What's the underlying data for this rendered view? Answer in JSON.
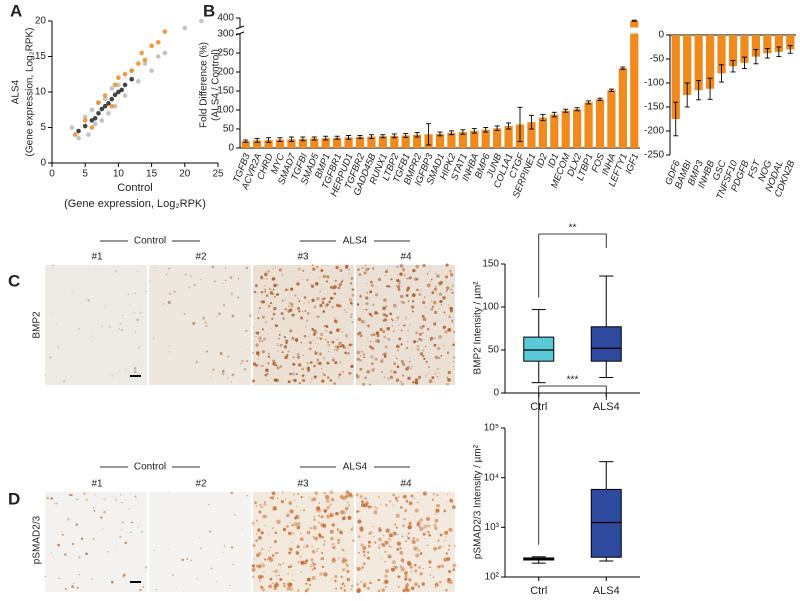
{
  "figure": {
    "panel_labels": [
      "A",
      "B",
      "C",
      "D"
    ],
    "panel_c": {
      "groups": [
        "Control",
        "ALS4"
      ],
      "samples": [
        "#1",
        "#2",
        "#3",
        "#4"
      ],
      "stain": "BMP2"
    },
    "panel_d": {
      "groups": [
        "Control",
        "ALS4"
      ],
      "samples": [
        "#1",
        "#2",
        "#3",
        "#4"
      ],
      "stain": "pSMAD2/3"
    }
  },
  "chart_data": [
    {
      "type": "scatter",
      "xlabel": [
        "Control",
        "(Gene expression, Log₂RPK)"
      ],
      "ylabel": [
        "ALS4",
        "(Gene expression, Log₂RPK)"
      ],
      "xlim": [
        0,
        25
      ],
      "ylim": [
        0,
        20
      ],
      "xticks": [
        0,
        5,
        10,
        15,
        20,
        25
      ],
      "yticks": [
        0,
        5,
        10,
        15,
        20
      ],
      "series": [
        {
          "color": "#b8b8b8",
          "x": [
            3,
            4,
            5,
            5.5,
            6,
            6.5,
            7,
            7.5,
            8,
            8.5,
            9,
            9.5,
            10,
            11,
            12,
            13,
            14,
            15,
            16,
            17,
            20,
            22.5
          ],
          "y": [
            5,
            3.5,
            6.5,
            4,
            7.5,
            5.5,
            8.5,
            6,
            9,
            7,
            10.5,
            8,
            11,
            9.5,
            13,
            11.5,
            14,
            13,
            15,
            15.5,
            19,
            20
          ]
        },
        {
          "color": "#222222",
          "x": [
            4,
            5,
            6,
            6.5,
            7,
            7.5,
            8,
            8.5,
            9,
            9.5,
            10,
            10.5,
            11,
            12
          ],
          "y": [
            4.5,
            5.2,
            6,
            6.3,
            7,
            7.6,
            8,
            8.4,
            9,
            9.6,
            10,
            10.3,
            11,
            11.8
          ]
        },
        {
          "color": "#f08a1c",
          "x": [
            3.5,
            5,
            6,
            7,
            8,
            9,
            9.5,
            10,
            11,
            12,
            13,
            13.5,
            14,
            15,
            16,
            17
          ],
          "y": [
            4,
            6,
            5,
            8.5,
            9.5,
            8,
            11,
            12,
            12.5,
            13,
            14,
            15.5,
            14.5,
            16.5,
            17,
            18.5
          ]
        }
      ]
    },
    {
      "type": "bar",
      "ylabel": [
        "Fold Difference (%)",
        "(ALS4 / Control)"
      ],
      "categories": [
        "TGFB3",
        "ACVR2A",
        "CHRD",
        "MYC",
        "SMAD7",
        "TGFBI",
        "SMAD5",
        "BMP1",
        "TGFBR1",
        "HERPUD1",
        "TGFBR2",
        "GADD45B",
        "RUNX1",
        "LTBP2",
        "TGFB1",
        "BMPR2",
        "IGFBP3",
        "SMAD1",
        "HIPK2",
        "STAT1",
        "INHBA",
        "BMP6",
        "JUNB",
        "COL1A1",
        "CTGF",
        "SERPINE1",
        "ID2",
        "ID1",
        "MECOM",
        "DLX2",
        "LTBP1",
        "FOS",
        "INHA",
        "LEFTY1",
        "IGF1"
      ],
      "values": [
        18,
        20,
        21,
        22,
        23,
        24,
        25,
        26,
        27,
        28,
        29,
        30,
        31,
        32,
        33,
        35,
        36,
        37,
        40,
        42,
        45,
        48,
        52,
        58,
        62,
        68,
        80,
        88,
        98,
        102,
        120,
        128,
        152,
        210,
        385
      ],
      "errors": [
        3,
        5,
        6,
        5,
        6,
        5,
        4,
        5,
        4,
        5,
        4,
        5,
        4,
        5,
        5,
        6,
        28,
        5,
        5,
        6,
        6,
        6,
        6,
        8,
        45,
        18,
        8,
        6,
        4,
        4,
        4,
        3,
        3,
        3,
        3
      ],
      "color": "#f08a1c",
      "ylim": [
        0,
        400
      ],
      "yticks": [
        0,
        50,
        100,
        150,
        200,
        250,
        300,
        400
      ],
      "axis_break": [
        300,
        350
      ]
    },
    {
      "type": "bar",
      "categories": [
        "GDF6",
        "BAMBI",
        "BMP3",
        "INHBB",
        "GSC",
        "TNFSF10",
        "PDGFB",
        "FST",
        "NOG",
        "NODAL",
        "CDKN2B"
      ],
      "values": [
        -175,
        -125,
        -115,
        -112,
        -80,
        -65,
        -58,
        -45,
        -38,
        -35,
        -30
      ],
      "errors": [
        35,
        25,
        20,
        22,
        18,
        12,
        12,
        15,
        10,
        10,
        8
      ],
      "color": "#f08a1c",
      "ylim": [
        -250,
        0
      ],
      "yticks": [
        -250,
        -200,
        -150,
        -100,
        -50,
        0
      ]
    },
    {
      "type": "box",
      "ylabel": "BMP2 Intensity / µm²",
      "categories": [
        "Ctrl",
        "ALS4"
      ],
      "boxes": [
        {
          "min": 12,
          "q1": 37,
          "median": 50,
          "q3": 65,
          "max": 97
        },
        {
          "min": 18,
          "q1": 37,
          "median": 52,
          "q3": 77,
          "max": 136
        }
      ],
      "colors": [
        "#5bc9d6",
        "#2d4a9e"
      ],
      "ylim": [
        0,
        150
      ],
      "yticks": [
        0,
        50,
        100,
        150
      ],
      "significance": "**"
    },
    {
      "type": "box",
      "ylabel": "pSMAD2/3 Intensity / µm²",
      "categories": [
        "Ctrl",
        "ALS4"
      ],
      "boxes": [
        {
          "min": 190,
          "q1": 220,
          "median": 230,
          "q3": 242,
          "max": 255
        },
        {
          "min": 210,
          "q1": 250,
          "median": 1250,
          "q3": 5800,
          "max": 21000
        }
      ],
      "colors": [
        "#5bc9d6",
        "#2d4a9e"
      ],
      "yscale": "log",
      "ylim": [
        100,
        100000
      ],
      "yticks": [
        {
          "value": 100,
          "label": "10²"
        },
        {
          "value": 1000,
          "label": "10³"
        },
        {
          "value": 10000,
          "label": "10⁴"
        },
        {
          "value": 100000,
          "label": "10⁵"
        }
      ],
      "significance": "***"
    }
  ]
}
